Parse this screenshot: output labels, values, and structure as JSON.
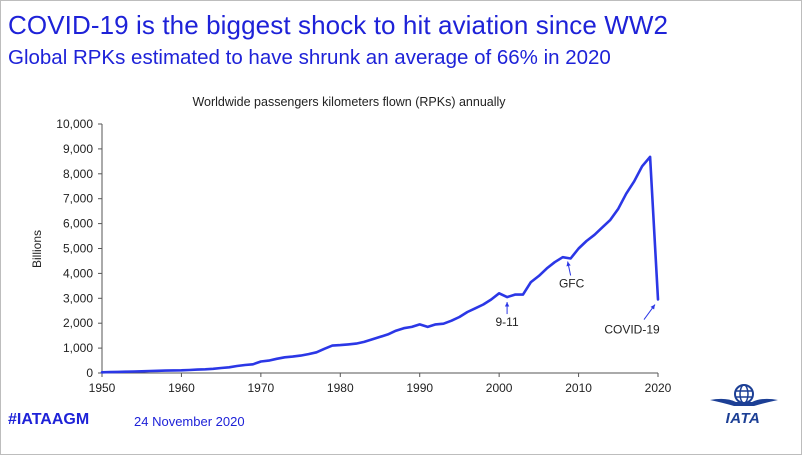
{
  "slide": {
    "title": "COVID-19 is the biggest shock to hit aviation since WW2",
    "subtitle": "Global RPKs estimated to have shrunk an average of 66% in 2020",
    "hashtag": "#IATAAGM",
    "date": "24 November 2020",
    "logo_text": "IATA"
  },
  "colors": {
    "accent": "#1e22d8",
    "line": "#2b37e6",
    "logo": "#1c3f95"
  },
  "chart_data": {
    "type": "line",
    "title": "Worldwide passengers kilometers flown (RPKs) annually",
    "xlabel": "",
    "ylabel": "Billions",
    "xlim": [
      1950,
      2020
    ],
    "ylim": [
      0,
      10000
    ],
    "grid": false,
    "x_ticks": [
      "1950",
      "1960",
      "1970",
      "1980",
      "1990",
      "2000",
      "2010",
      "2020"
    ],
    "y_ticks": [
      "0",
      "1,000",
      "2,000",
      "3,000",
      "4,000",
      "5,000",
      "6,000",
      "7,000",
      "8,000",
      "9,000",
      "10,000"
    ],
    "series": [
      {
        "x": [
          1950,
          1951,
          1952,
          1953,
          1954,
          1955,
          1956,
          1957,
          1958,
          1959,
          1960,
          1961,
          1962,
          1963,
          1964,
          1965,
          1966,
          1967,
          1968,
          1969,
          1970,
          1971,
          1972,
          1973,
          1974,
          1975,
          1976,
          1977,
          1978,
          1979,
          1980,
          1981,
          1982,
          1983,
          1984,
          1985,
          1986,
          1987,
          1988,
          1989,
          1990,
          1991,
          1992,
          1993,
          1994,
          1995,
          1996,
          1997,
          1998,
          1999,
          2000,
          2001,
          2002,
          2003,
          2004,
          2005,
          2006,
          2007,
          2008,
          2009,
          2010,
          2011,
          2012,
          2013,
          2014,
          2015,
          2016,
          2017,
          2018,
          2019,
          2020
        ],
        "values": [
          28,
          35,
          43,
          52,
          60,
          70,
          80,
          90,
          95,
          105,
          110,
          120,
          135,
          150,
          170,
          200,
          230,
          280,
          320,
          350,
          460,
          500,
          570,
          630,
          660,
          700,
          760,
          830,
          970,
          1100,
          1120,
          1150,
          1180,
          1250,
          1350,
          1450,
          1550,
          1700,
          1800,
          1850,
          1950,
          1850,
          1950,
          1980,
          2100,
          2250,
          2450,
          2600,
          2750,
          2950,
          3200,
          3050,
          3150,
          3150,
          3650,
          3900,
          4200,
          4450,
          4650,
          4600,
          5000,
          5300,
          5550,
          5850,
          6150,
          6600,
          7200,
          7700,
          8300,
          8680,
          2950
        ]
      }
    ],
    "annotations": [
      {
        "text": "9-11",
        "x": 2001,
        "y": 3050
      },
      {
        "text": "GFC",
        "x": 2009,
        "y": 4600
      },
      {
        "text": "COVID-19",
        "x": 2020,
        "y": 2950
      }
    ]
  }
}
